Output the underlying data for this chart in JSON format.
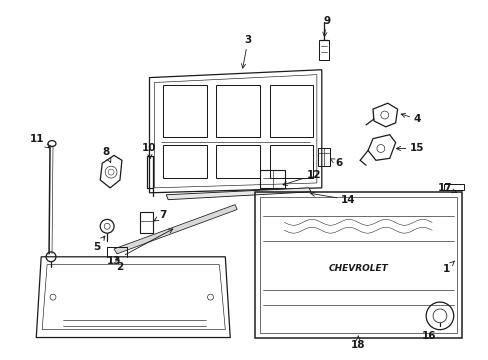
{
  "background_color": "#ffffff",
  "fig_width": 4.89,
  "fig_height": 3.6,
  "dpi": 100,
  "line_color": "#1a1a1a",
  "label_fontsize": 7.5
}
